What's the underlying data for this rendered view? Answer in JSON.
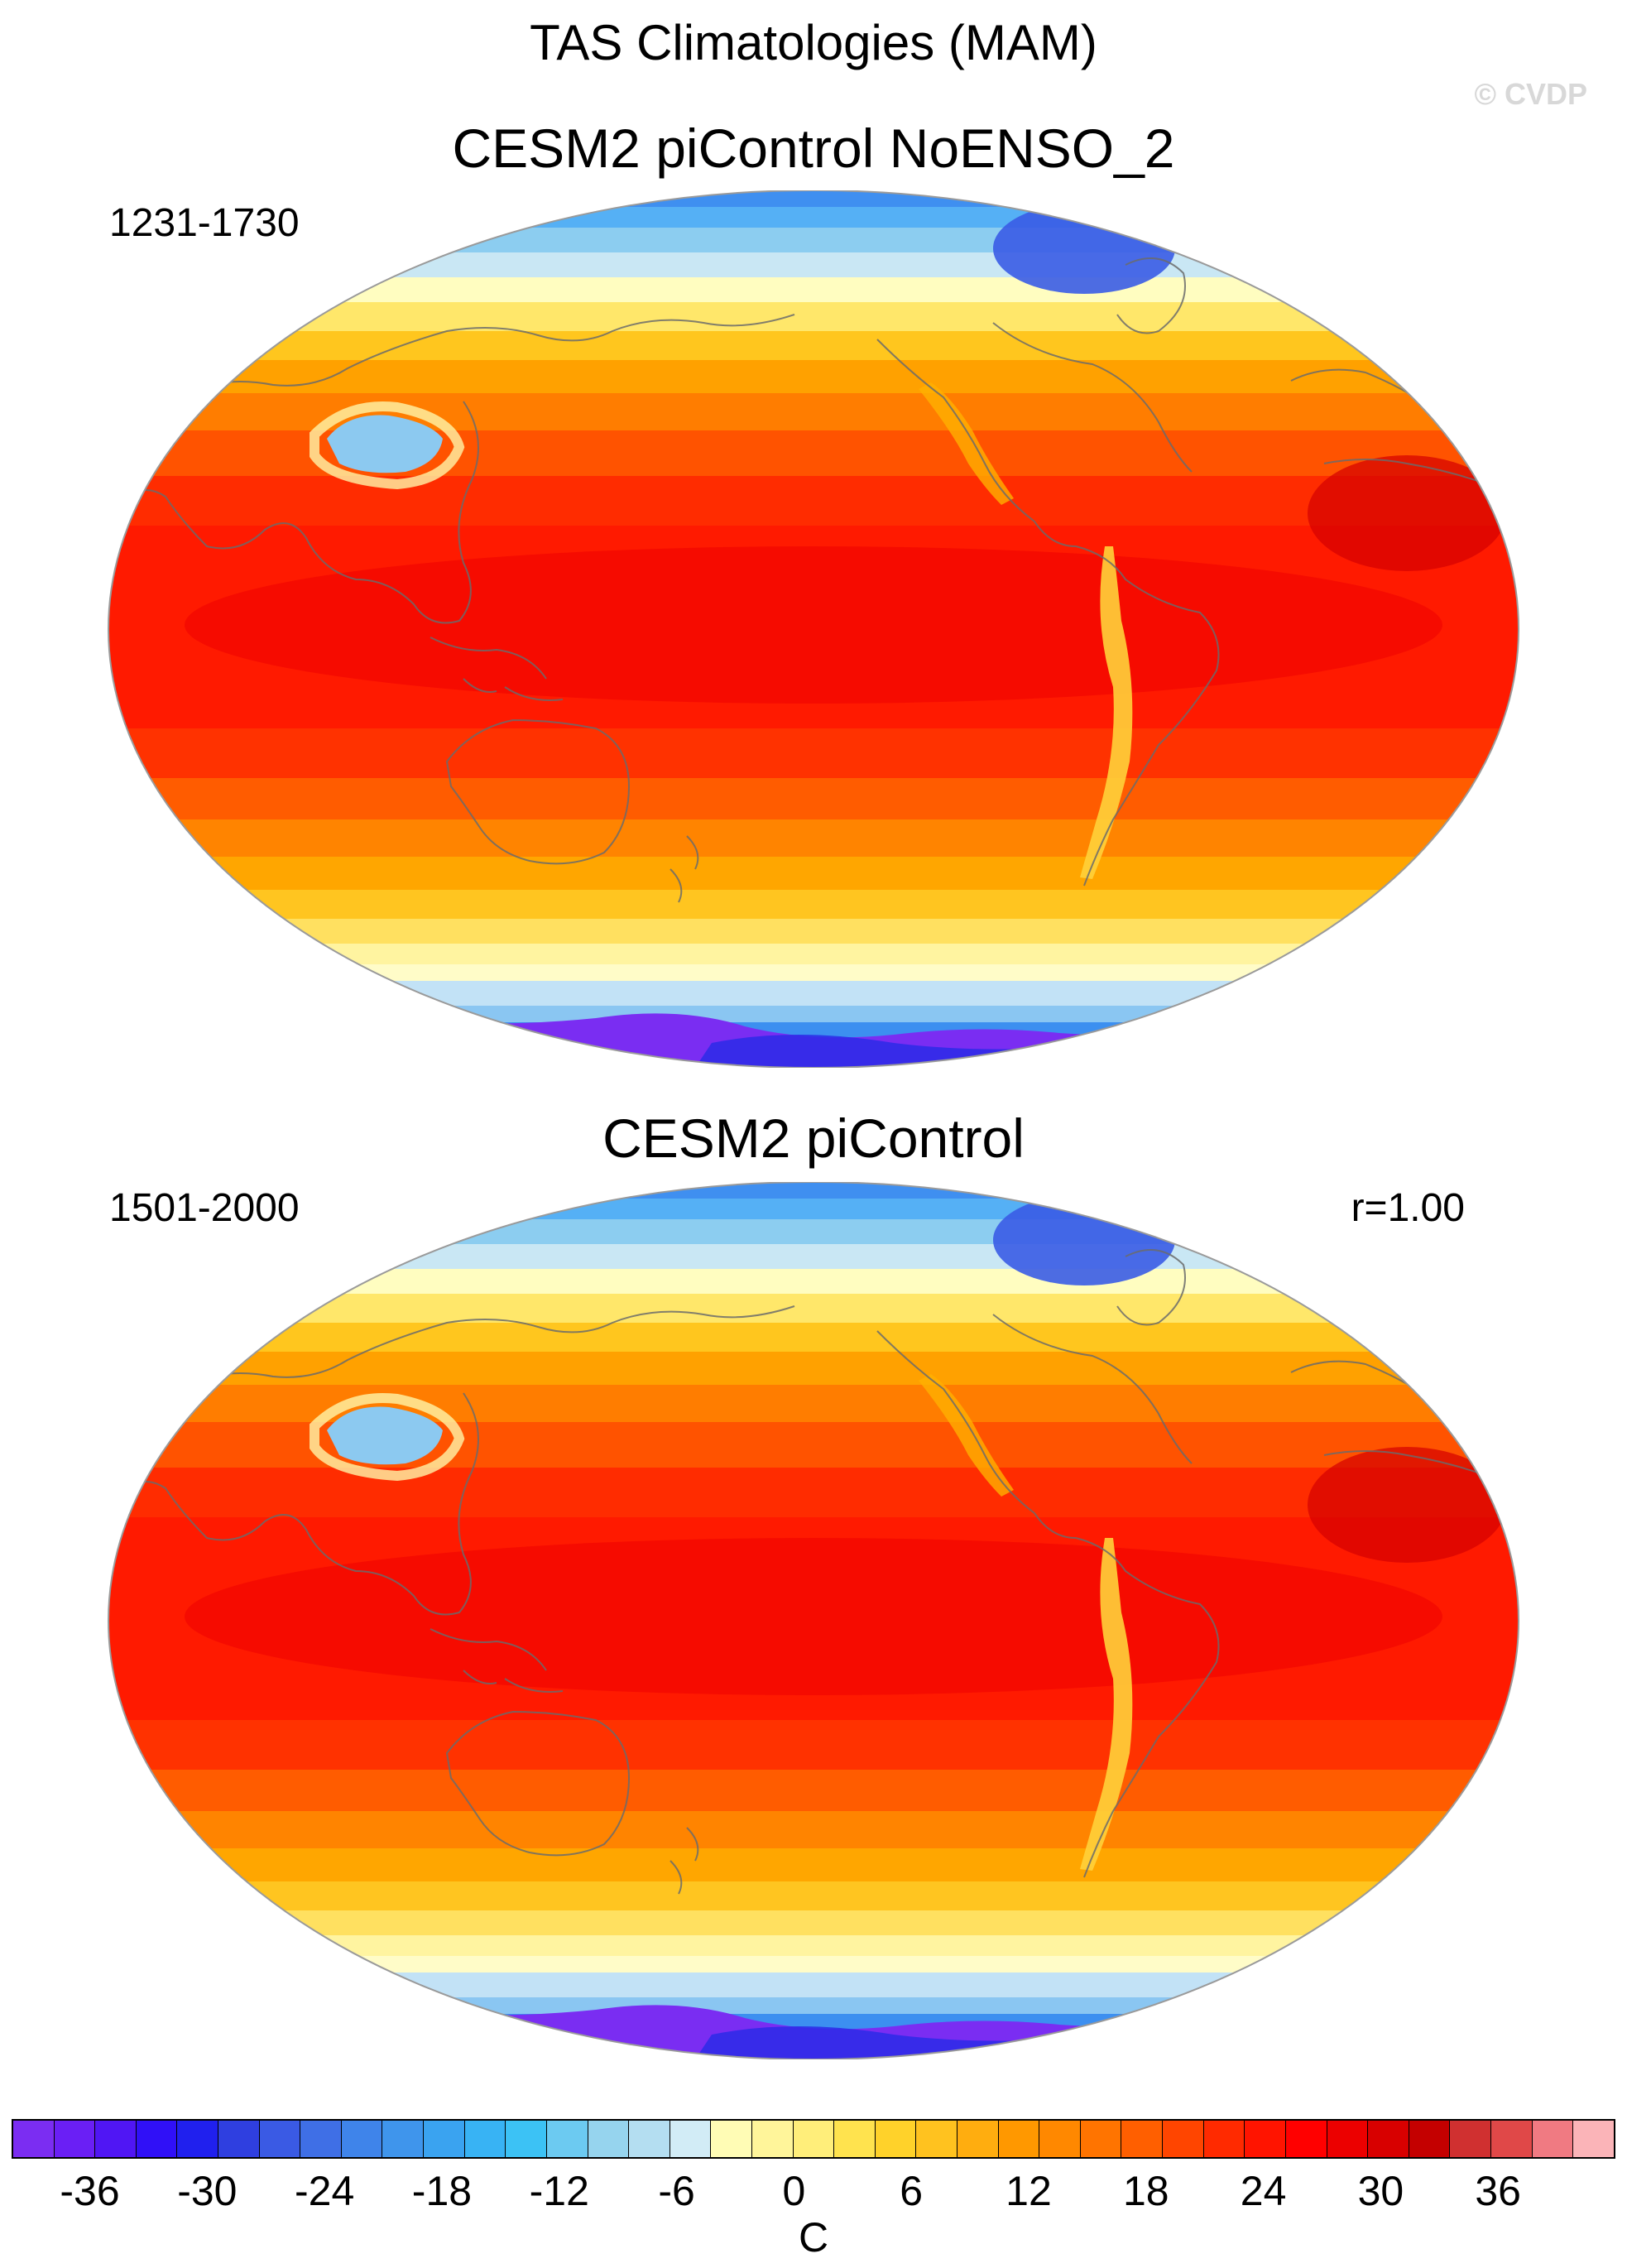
{
  "title": "TAS Climatologies (MAM)",
  "watermark": "© CVDP",
  "panels": [
    {
      "title": "CESM2 piControl NoENSO_2",
      "years": "1231-1730",
      "corr": ""
    },
    {
      "title": "CESM2 piControl",
      "years": "1501-2000",
      "corr": "r=1.00"
    }
  ],
  "colorbar": {
    "units": "C",
    "tick_labels": [
      "-36",
      "-30",
      "-24",
      "-18",
      "-12",
      "-6",
      "0",
      "6",
      "12",
      "18",
      "24",
      "30",
      "36"
    ],
    "tick_values": [
      -36,
      -30,
      -24,
      -18,
      -12,
      -6,
      0,
      6,
      12,
      18,
      24,
      30,
      36
    ],
    "min": -40,
    "max": 42,
    "colors": [
      "#7b2df2",
      "#6a1ff5",
      "#5016f4",
      "#3010f7",
      "#2020ee",
      "#2f3fe0",
      "#3a5ae4",
      "#3f6fe6",
      "#3f84ea",
      "#3f95ec",
      "#3aa3f0",
      "#38b3f4",
      "#3cc2f5",
      "#6ccaf1",
      "#96d4ee",
      "#b4def1",
      "#d2ecf6",
      "#fffcb5",
      "#fff59a",
      "#ffee7a",
      "#ffe34e",
      "#ffd22a",
      "#ffc21f",
      "#ffad0f",
      "#ff9800",
      "#ff8800",
      "#ff7400",
      "#ff5f00",
      "#ff4500",
      "#ff2a00",
      "#ff1400",
      "#ff0000",
      "#ec0000",
      "#d80000",
      "#c40000",
      "#d03030",
      "#e04848",
      "#f07a82",
      "#fbb4b8"
    ]
  }
}
